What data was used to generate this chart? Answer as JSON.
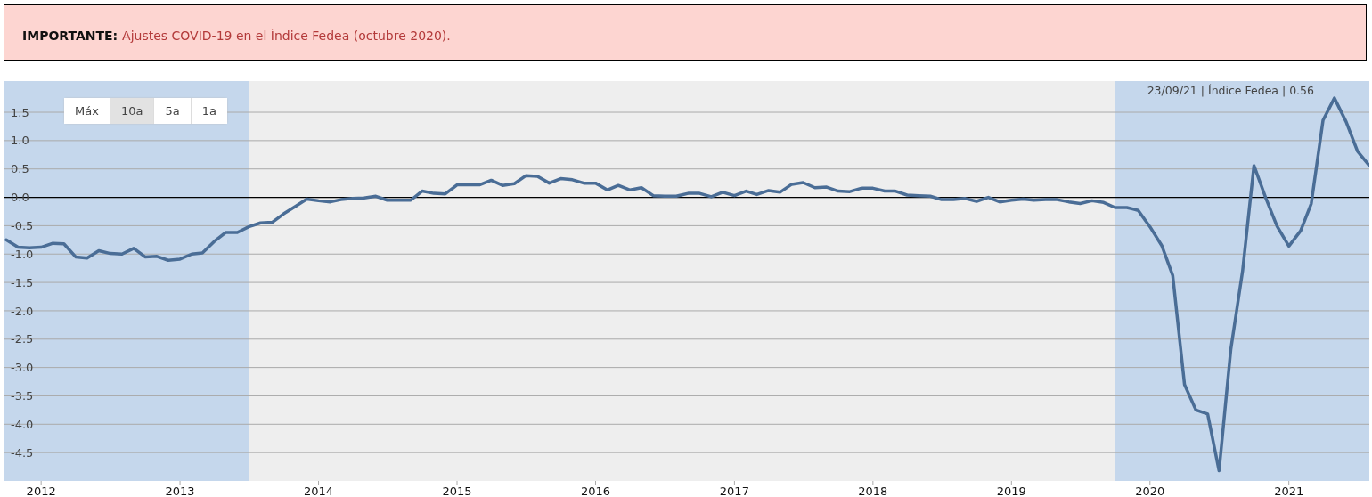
{
  "chart_data": {
    "type": "line",
    "title": "IMPORTANTE:",
    "subtitle": "Ajustes COVID-19 en el Índice Fedea (octubre 2020).",
    "annotations": [
      "23/09/21 | Índice Fedea | 0.56",
      "Máx",
      "10a",
      "5a",
      "1a"
    ],
    "x": [
      "2011-10",
      "2011-11",
      "2011-12",
      "2012-01",
      "2012-02",
      "2012-03",
      "2012-04",
      "2012-05",
      "2012-06",
      "2012-07",
      "2012-08",
      "2012-09",
      "2012-10",
      "2012-11",
      "2012-12",
      "2013-01",
      "2013-02",
      "2013-03",
      "2013-04",
      "2013-05",
      "2013-06",
      "2013-07",
      "2013-08",
      "2013-09",
      "2013-10",
      "2013-11",
      "2013-12",
      "2014-01",
      "2014-02",
      "2014-03",
      "2014-04",
      "2014-05",
      "2014-06",
      "2014-07",
      "2014-08",
      "2014-09",
      "2014-10",
      "2014-11",
      "2014-12",
      "2015-01",
      "2015-02",
      "2015-03",
      "2015-04",
      "2015-05",
      "2015-06",
      "2015-07",
      "2015-08",
      "2015-09",
      "2015-10",
      "2015-11",
      "2015-12",
      "2016-01",
      "2016-02",
      "2016-03",
      "2016-04",
      "2016-05",
      "2016-06",
      "2016-07",
      "2016-08",
      "2016-09",
      "2016-10",
      "2016-11",
      "2016-12",
      "2017-01",
      "2017-02",
      "2017-03",
      "2017-04",
      "2017-05",
      "2017-06",
      "2017-07",
      "2017-08",
      "2017-09",
      "2017-10",
      "2017-11",
      "2017-12",
      "2018-01",
      "2018-02",
      "2018-03",
      "2018-04",
      "2018-05",
      "2018-06",
      "2018-07",
      "2018-08",
      "2018-09",
      "2018-10",
      "2018-11",
      "2018-12",
      "2019-01",
      "2019-02",
      "2019-03",
      "2019-04",
      "2019-05",
      "2019-06",
      "2019-07",
      "2019-08",
      "2019-09",
      "2019-10",
      "2019-11",
      "2019-12",
      "2020-01",
      "2020-02",
      "2020-03",
      "2020-04",
      "2020-05",
      "2020-06",
      "2020-07",
      "2020-08",
      "2020-09",
      "2020-10",
      "2020-11",
      "2020-12",
      "2021-01",
      "2021-02",
      "2021-03",
      "2021-04",
      "2021-05",
      "2021-06",
      "2021-07",
      "2021-08"
    ],
    "values": [
      -0.75,
      -0.88,
      -0.89,
      -0.88,
      -0.81,
      -0.82,
      -1.05,
      -1.07,
      -0.94,
      -0.99,
      -1.0,
      -0.9,
      -1.05,
      -1.04,
      -1.11,
      -1.09,
      -1.0,
      -0.98,
      -0.78,
      -0.62,
      -0.62,
      -0.52,
      -0.45,
      -0.44,
      -0.29,
      -0.16,
      -0.03,
      -0.06,
      -0.08,
      -0.04,
      -0.02,
      -0.01,
      0.02,
      -0.05,
      -0.05,
      -0.05,
      0.11,
      0.07,
      0.06,
      0.22,
      0.22,
      0.22,
      0.3,
      0.21,
      0.24,
      0.38,
      0.37,
      0.25,
      0.33,
      0.31,
      0.25,
      0.25,
      0.13,
      0.21,
      0.13,
      0.17,
      0.03,
      0.02,
      0.02,
      0.07,
      0.07,
      0.01,
      0.09,
      0.03,
      0.11,
      0.05,
      0.12,
      0.09,
      0.23,
      0.26,
      0.17,
      0.18,
      0.11,
      0.1,
      0.16,
      0.16,
      0.11,
      0.11,
      0.04,
      0.03,
      0.02,
      -0.04,
      -0.04,
      -0.02,
      -0.07,
      0.0,
      -0.08,
      -0.05,
      -0.03,
      -0.05,
      -0.04,
      -0.04,
      -0.08,
      -0.11,
      -0.06,
      -0.09,
      -0.18,
      -0.18,
      -0.23,
      -0.52,
      -0.85,
      -1.38,
      -3.3,
      -3.75,
      -3.82,
      -4.82,
      -2.68,
      -1.3,
      0.56,
      -0.01,
      -0.51,
      -0.86,
      -0.59,
      -0.11,
      1.36,
      1.75,
      1.33,
      0.81,
      0.56
    ],
    "color": "#4a6d96",
    "xlim": [
      "2011-09-24",
      "2021-08"
    ],
    "xticks": [
      "2012",
      "2013",
      "2014",
      "2015",
      "2016",
      "2017",
      "2018",
      "2019",
      "2020",
      "2021"
    ],
    "ylim": [
      -5,
      2.05
    ],
    "yticks": [
      1.5,
      {
        "value": 1,
        "label": "1.0"
      },
      0.5,
      {
        "value": 0,
        "label": "0.0"
      },
      -0.5,
      {
        "value": -1,
        "label": "-1.0"
      },
      -1.5,
      {
        "value": -2,
        "label": "-2.0"
      },
      -2.5,
      {
        "value": -3,
        "label": "-3.0"
      },
      -3.5,
      {
        "value": -4,
        "label": "-4.0"
      },
      -4.5
    ],
    "grid": "y",
    "ref_lines": [
      {
        "axis": "y",
        "value": 0,
        "color": "#000000"
      }
    ],
    "bands": [
      {
        "axis": "x",
        "from": "2011-09-24",
        "to": "2013-07",
        "color": "#c5d7ec"
      },
      {
        "axis": "x",
        "from": "2019-10",
        "to": "2021-08",
        "color": "#c5d7ec"
      }
    ]
  }
}
